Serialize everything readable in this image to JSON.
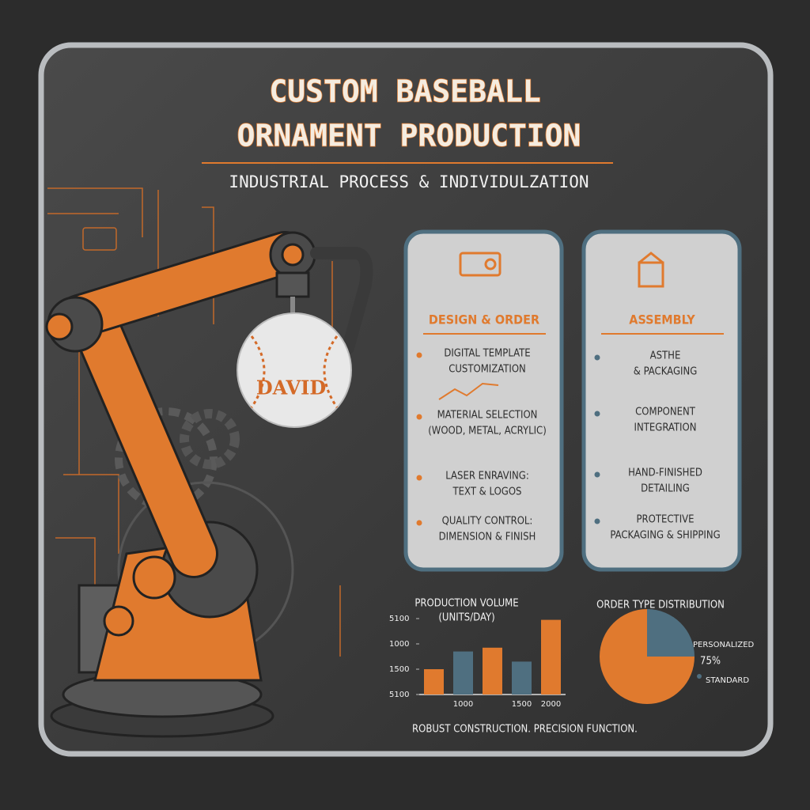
{
  "header": {
    "title_lines": [
      "CUSTOM BASEBALL",
      "ORNAMENT PRODUCTION"
    ],
    "subtitle": "INDUSTRIAL PROCESS & INDIVIDULZATION"
  },
  "ornament_name": "DAVID",
  "cards": [
    {
      "title": "DESIGN & ORDER",
      "items": [
        {
          "lines": [
            "DIGITAL TEMPLATE",
            "CUSTOMIZATION"
          ]
        },
        {
          "lines": [
            "MATERIAL SELECTION",
            "(WOOD, METAL, ACRYLIC)"
          ]
        },
        {
          "lines": [
            "LASER ENRAVING:",
            "TEXT & LOGOS"
          ]
        },
        {
          "lines": [
            "QUALITY CONTROL:",
            "DIMENSION & FINISH"
          ]
        }
      ]
    },
    {
      "title": "ASSEMBLY",
      "items": [
        {
          "lines": [
            "ASTHE",
            "& PACKAGING"
          ]
        },
        {
          "lines": [
            "COMPONENT",
            "INTEGRATION"
          ]
        },
        {
          "lines": [
            "HAND-FINISHED",
            "DETAILING"
          ]
        },
        {
          "lines": [
            "PROTECTIVE",
            "PACKAGING & SHIPPING"
          ]
        }
      ]
    }
  ],
  "chart_data": [
    {
      "type": "bar",
      "title_lines": [
        "PRODUCTION VOLUME",
        "(UNITS/DAY)"
      ],
      "categories": [
        null,
        "1000",
        null,
        "1500",
        "2000"
      ],
      "values": [
        1.0,
        1.7,
        1.85,
        1.3,
        2.95
      ],
      "colors": [
        "#e07a2e",
        "#4f6f80",
        "#e07a2e",
        "#4f6f80",
        "#e07a2e"
      ],
      "ylim": [
        0,
        3
      ],
      "yticks": [
        {
          "value": 3,
          "label": "5100"
        },
        {
          "value": 2,
          "label": "1000"
        },
        {
          "value": 1,
          "label": "1500"
        },
        {
          "value": 0,
          "label": "5100"
        }
      ]
    },
    {
      "type": "pie",
      "title": "ORDER TYPE DISTRIBUTION",
      "series": [
        {
          "name": "STANDARD",
          "color": "#4f6f80",
          "value": 25
        },
        {
          "name": "PERSONALIZED",
          "color": "#e07a2e",
          "value": 75,
          "value_label": "75%"
        }
      ]
    }
  ],
  "footer": "ROBUST CONSTRUCTION. PRECISION FUNCTION."
}
